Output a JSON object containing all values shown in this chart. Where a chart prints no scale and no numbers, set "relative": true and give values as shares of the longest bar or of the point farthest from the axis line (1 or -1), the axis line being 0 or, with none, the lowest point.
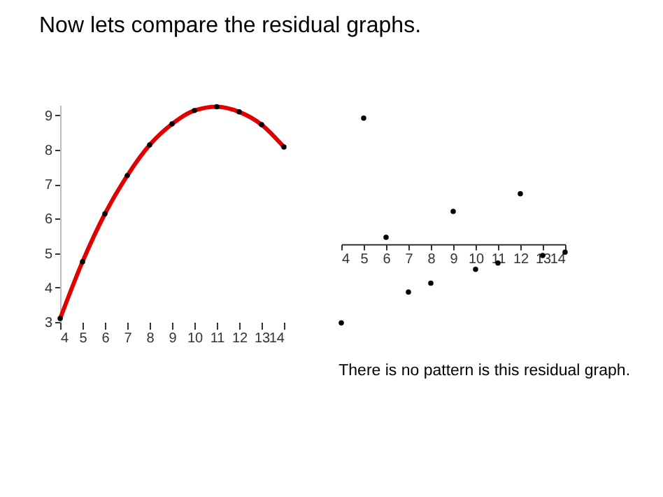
{
  "chart_data": [
    {
      "type": "scatter",
      "title": "Now lets compare the residual graphs.",
      "x": [
        4,
        5,
        6,
        7,
        8,
        9,
        10,
        11,
        12,
        13,
        14
      ],
      "xlim": [
        4,
        14
      ],
      "xticks": [
        4,
        5,
        6,
        7,
        8,
        9,
        10,
        11,
        12,
        13,
        14
      ],
      "ylim": [
        3,
        9.3
      ],
      "yticks": [
        3,
        4,
        5,
        6,
        7,
        8,
        9
      ],
      "grid": false,
      "series": [
        {
          "marker": "circle",
          "color": "#000000",
          "values": [
            3.1,
            4.75,
            6.14,
            7.25,
            8.14,
            8.75,
            9.14,
            9.25,
            9.1,
            8.73,
            8.08
          ]
        },
        {
          "type": "line",
          "color": "#e00000",
          "line_style": "solid",
          "x": [
            4,
            5,
            6,
            7,
            8,
            9,
            10,
            11,
            12,
            13,
            14
          ],
          "values": [
            3.1,
            4.75,
            6.14,
            7.25,
            8.14,
            8.75,
            9.14,
            9.25,
            9.1,
            8.73,
            8.08
          ]
        }
      ]
    },
    {
      "type": "scatter",
      "relative": true,
      "tick_labels": "x",
      "grid": false,
      "marker": "circle",
      "x": [
        4,
        5,
        6,
        7,
        8,
        9,
        10,
        11,
        12,
        13,
        14
      ],
      "xlim": [
        4,
        14
      ],
      "xticks": [
        4,
        5,
        6,
        7,
        8,
        9,
        10,
        11,
        12,
        13,
        14
      ],
      "series": [
        {
          "color": "#000000",
          "values": [
            -0.625,
            1,
            0.054,
            -0.38,
            -0.31,
            0.26,
            -0.2,
            -0.15,
            0.4,
            -0.09,
            -0.064
          ]
        }
      ],
      "annotations": [
        "There is no pattern is this residual graph."
      ]
    }
  ]
}
